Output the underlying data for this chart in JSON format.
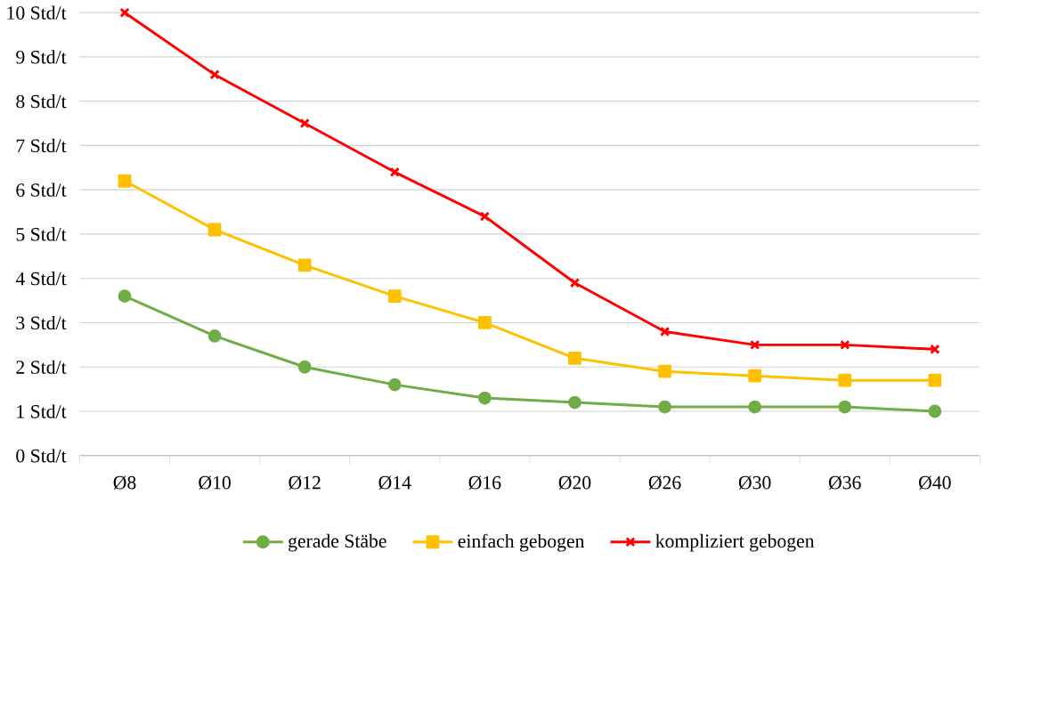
{
  "chart_data": {
    "type": "line",
    "categories": [
      "Ø8",
      "Ø10",
      "Ø12",
      "Ø14",
      "Ø16",
      "Ø20",
      "Ø26",
      "Ø30",
      "Ø36",
      "Ø40"
    ],
    "series": [
      {
        "name": "gerade Stäbe",
        "color": "#70ad47",
        "marker": "circle",
        "values": [
          3.6,
          2.7,
          2.0,
          1.6,
          1.3,
          1.2,
          1.1,
          1.1,
          1.1,
          1.0
        ]
      },
      {
        "name": "einfach gebogen",
        "color": "#ffc000",
        "marker": "square",
        "values": [
          6.2,
          5.1,
          4.3,
          3.6,
          3.0,
          2.2,
          1.9,
          1.8,
          1.7,
          1.7
        ]
      },
      {
        "name": "kompliziert gebogen",
        "color": "#ff0000",
        "marker": "cross",
        "values": [
          10,
          8.6,
          7.5,
          6.4,
          5.4,
          3.9,
          2.8,
          2.5,
          2.5,
          2.4
        ]
      }
    ],
    "ylim": [
      0,
      10
    ],
    "yticks": [
      {
        "value": 0,
        "label": "0 Std/t"
      },
      {
        "value": 1,
        "label": "1 Std/t"
      },
      {
        "value": 2,
        "label": "2 Std/t"
      },
      {
        "value": 3,
        "label": "3 Std/t"
      },
      {
        "value": 4,
        "label": "4 Std/t"
      },
      {
        "value": 5,
        "label": "5 Std/t"
      },
      {
        "value": 6,
        "label": "6 Std/t"
      },
      {
        "value": 7,
        "label": "7 Std/t"
      },
      {
        "value": 8,
        "label": "8 Std/t"
      },
      {
        "value": 9,
        "label": "9 Std/t"
      },
      {
        "value": 10,
        "label": "10 Std/t"
      }
    ],
    "grid": "y",
    "legend": "bottom",
    "line_style": "solid"
  }
}
